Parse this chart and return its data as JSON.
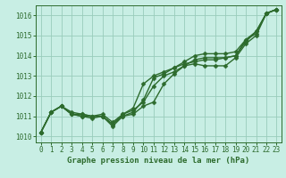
{
  "title": "",
  "xlabel": "Graphe pression niveau de la mer (hPa)",
  "ylabel": "",
  "xlim": [
    -0.5,
    23.5
  ],
  "ylim": [
    1009.7,
    1016.5
  ],
  "yticks": [
    1010,
    1011,
    1012,
    1013,
    1014,
    1015,
    1016
  ],
  "xticks": [
    0,
    1,
    2,
    3,
    4,
    5,
    6,
    7,
    8,
    9,
    10,
    11,
    12,
    13,
    14,
    15,
    16,
    17,
    18,
    19,
    20,
    21,
    22,
    23
  ],
  "bg_color": "#c8eee4",
  "grid_color": "#99ccbb",
  "line_color": "#2d6b2d",
  "line_width": 1.0,
  "marker": "D",
  "marker_size": 2.5,
  "series": [
    [
      1010.2,
      1011.2,
      1011.5,
      1011.1,
      1011.0,
      1011.0,
      1011.0,
      1010.6,
      1011.0,
      1011.1,
      1011.5,
      1011.7,
      1012.6,
      1013.1,
      1013.5,
      1013.6,
      1013.5,
      1013.5,
      1013.5,
      1013.9,
      1014.6,
      1015.0,
      1016.1,
      1016.3
    ],
    [
      1010.2,
      1011.2,
      1011.5,
      1011.1,
      1011.1,
      1011.0,
      1011.1,
      1010.7,
      1011.1,
      1011.4,
      1012.6,
      1013.0,
      1013.2,
      1013.4,
      1013.6,
      1013.7,
      1013.8,
      1013.8,
      1013.9,
      1014.0,
      1014.7,
      1015.2,
      1016.1,
      1016.3
    ],
    [
      1010.2,
      1011.2,
      1011.5,
      1011.2,
      1011.1,
      1011.0,
      1011.0,
      1010.6,
      1011.1,
      1011.3,
      1011.7,
      1012.5,
      1013.0,
      1013.2,
      1013.5,
      1013.8,
      1013.9,
      1013.9,
      1013.9,
      1014.0,
      1014.8,
      1015.1,
      1016.1,
      1016.3
    ],
    [
      1010.2,
      1011.2,
      1011.5,
      1011.1,
      1011.0,
      1010.9,
      1011.0,
      1010.5,
      1011.0,
      1011.2,
      1011.8,
      1012.9,
      1013.1,
      1013.4,
      1013.7,
      1014.0,
      1014.1,
      1014.1,
      1014.1,
      1014.2,
      1014.8,
      1015.2,
      1016.1,
      1016.3
    ]
  ]
}
